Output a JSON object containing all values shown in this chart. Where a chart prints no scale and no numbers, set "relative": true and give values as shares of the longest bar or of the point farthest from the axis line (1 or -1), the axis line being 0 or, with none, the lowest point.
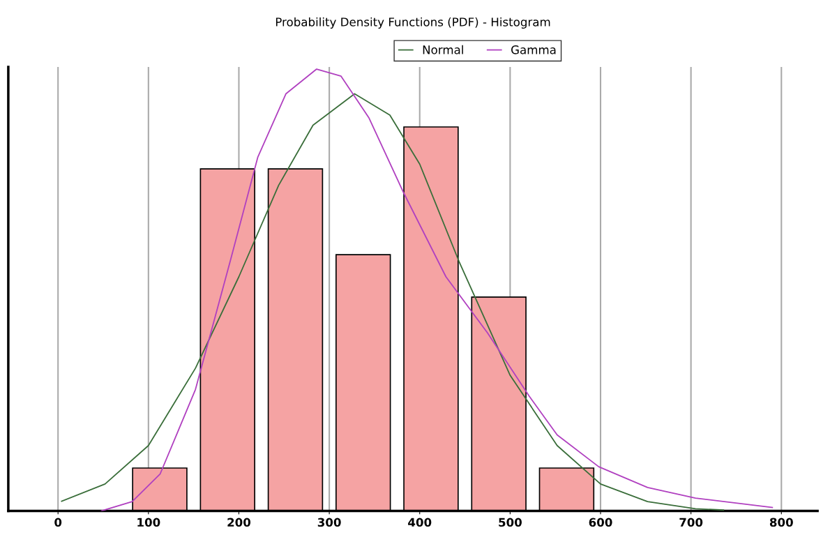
{
  "chart_data": {
    "type": "histogram",
    "title": "Probability Density Functions (PDF) - Histogram",
    "relative": true,
    "bins": [
      75,
      150,
      225,
      300,
      375,
      450,
      525,
      600
    ],
    "values": [
      0.097,
      0.774,
      0.774,
      0.58,
      0.869,
      0.484,
      0.097
    ],
    "color": "#f5a3a3",
    "series": [
      {
        "name": "Normal",
        "type": "line",
        "color": "#3a6e3a",
        "x": [
          4,
          52,
          100,
          152,
          200,
          244,
          282,
          328,
          367,
          400,
          444,
          500,
          552,
          600,
          652,
          705,
          736
        ],
        "values": [
          0.022,
          0.061,
          0.148,
          0.323,
          0.53,
          0.737,
          0.873,
          0.944,
          0.896,
          0.785,
          0.562,
          0.307,
          0.148,
          0.061,
          0.021,
          0.005,
          0.002
        ]
      },
      {
        "name": "Gamma",
        "type": "line",
        "color": "#b040c0",
        "x": [
          48,
          82,
          113,
          152,
          190,
          221,
          252,
          286,
          313,
          344,
          382,
          429,
          475,
          521,
          552,
          598,
          652,
          705,
          790
        ],
        "values": [
          0,
          0.021,
          0.084,
          0.275,
          0.562,
          0.801,
          0.944,
          1,
          0.984,
          0.889,
          0.721,
          0.53,
          0.403,
          0.26,
          0.172,
          0.1,
          0.053,
          0.029,
          0.008
        ]
      }
    ],
    "xlim": [
      -55,
      840
    ],
    "xticks": [
      0,
      100,
      200,
      300,
      400,
      500,
      600,
      700,
      800
    ],
    "grid": "x",
    "legend": "top"
  }
}
